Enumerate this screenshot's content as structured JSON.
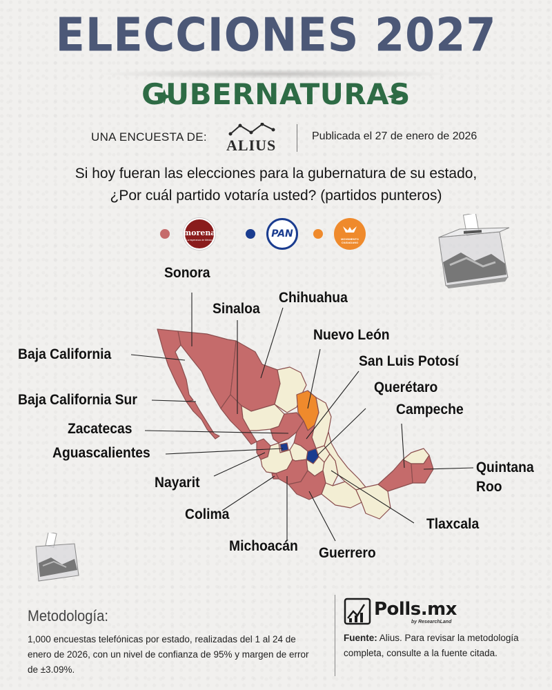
{
  "header": {
    "title": "ELECCIONES 2027",
    "subtitle": "GUBERNATURAS"
  },
  "byline": {
    "label": "UNA ENCUESTA DE:",
    "pollster": "ALIUS",
    "date": "Publicada el 27 de enero de 2026"
  },
  "question": {
    "line1": "Si hoy fueran las elecciones para la gubernatura de su estado,",
    "line2": "¿Por cuál partido votaría usted? (partidos punteros)"
  },
  "legend": [
    {
      "party": "morena",
      "logo_text": "morena",
      "logo_sub": "La esperanza de México",
      "color": "#c56b6b"
    },
    {
      "party": "PAN",
      "logo_text": "PAN",
      "color": "#1a3c8f"
    },
    {
      "party": "Movimiento Ciudadano",
      "logo_text": "MOVIMIENTO CIUDADANO",
      "color": "#ef8a2c"
    }
  ],
  "colors": {
    "morena": "#c56b6b",
    "pan": "#1a3c8f",
    "mc": "#ef8a2c",
    "no_election": "#f3eed4",
    "title": "#4c5877",
    "subtitle": "#2e6b45"
  },
  "states": [
    {
      "name": "Sonora",
      "party": "morena"
    },
    {
      "name": "Chihuahua",
      "party": "morena"
    },
    {
      "name": "Sinaloa",
      "party": "morena"
    },
    {
      "name": "Nuevo León",
      "party": "mc"
    },
    {
      "name": "Baja California",
      "party": "morena"
    },
    {
      "name": "San Luis Potosí",
      "party": "morena"
    },
    {
      "name": "Querétaro",
      "party": "pan"
    },
    {
      "name": "Baja California Sur",
      "party": "morena"
    },
    {
      "name": "Campeche",
      "party": "morena"
    },
    {
      "name": "Zacatecas",
      "party": "morena"
    },
    {
      "name": "Aguascalientes",
      "party": "pan"
    },
    {
      "name": "Quintana Roo",
      "party": "morena"
    },
    {
      "name": "Nayarit",
      "party": "morena"
    },
    {
      "name": "Colima",
      "party": "morena"
    },
    {
      "name": "Tlaxcala",
      "party": "morena"
    },
    {
      "name": "Michoacán",
      "party": "morena"
    },
    {
      "name": "Guerrero",
      "party": "morena"
    }
  ],
  "methodology": {
    "title": "Metodología:",
    "text": "1,000 encuestas telefónicas por estado, realizadas del 1 al 24 de enero de 2026, con un nivel de confianza de 95% y margen de error de ±3.09%."
  },
  "source": {
    "brand": "Polls.mx",
    "brand_tag": "by ResearchLand",
    "label": "Fuente:",
    "text": " Alius. Para revisar la metodología completa, consulte a la fuente citada."
  }
}
